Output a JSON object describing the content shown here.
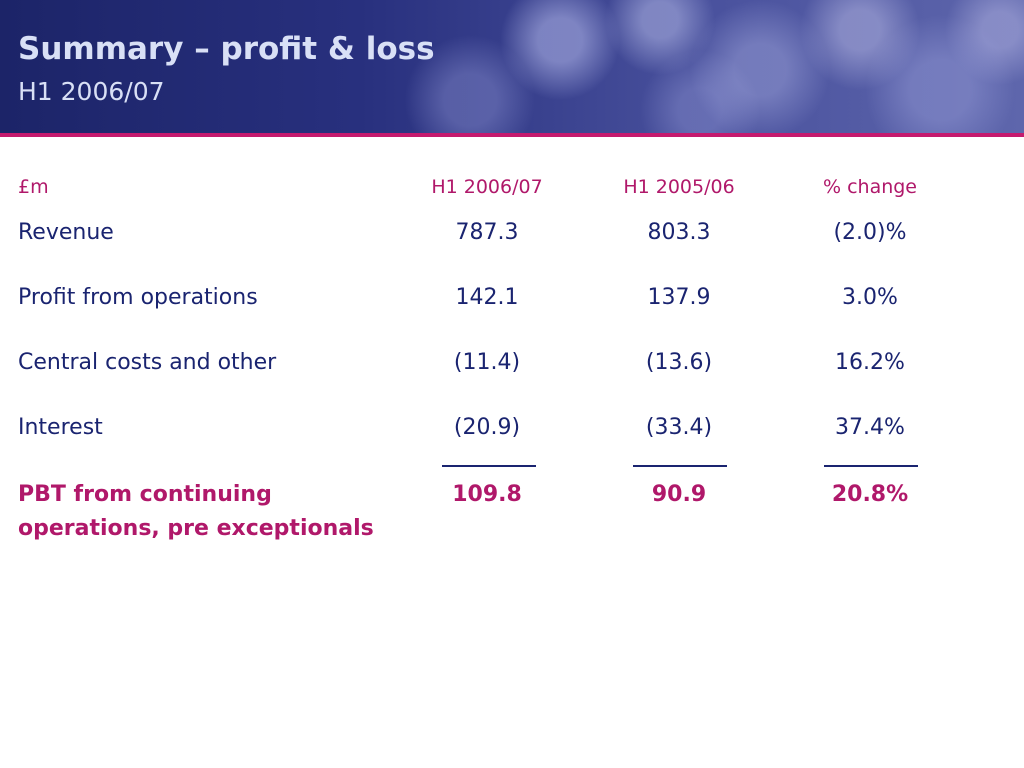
{
  "slide": {
    "title": "Summary – profit & loss",
    "subtitle": "H1 2006/07"
  },
  "table": {
    "headers": {
      "unit": "£m",
      "col1": "H1 2006/07",
      "col2": "H1 2005/06",
      "col3": "% change"
    },
    "rows": [
      {
        "label": "Revenue",
        "v1": "787.3",
        "v2": "803.3",
        "v3": "(2.0)%"
      },
      {
        "label": "Profit from operations",
        "v1": "142.1",
        "v2": "137.9",
        "v3": "3.0%"
      },
      {
        "label": "Central costs and other",
        "v1": "(11.4)",
        "v2": "(13.6)",
        "v3": "16.2%"
      },
      {
        "label": "Interest",
        "v1": "(20.9)",
        "v2": "(33.4)",
        "v3": "37.4%"
      }
    ],
    "total": {
      "label_line1": "PBT from continuing",
      "label_line2": "operations, pre exceptionals",
      "v1": "109.8",
      "v2": "90.9",
      "v3": "20.8%"
    }
  },
  "colors": {
    "header_band": "#28307e",
    "title_text": "#d9e0f6",
    "accent": "#b0186a",
    "body_text": "#1a2470"
  }
}
